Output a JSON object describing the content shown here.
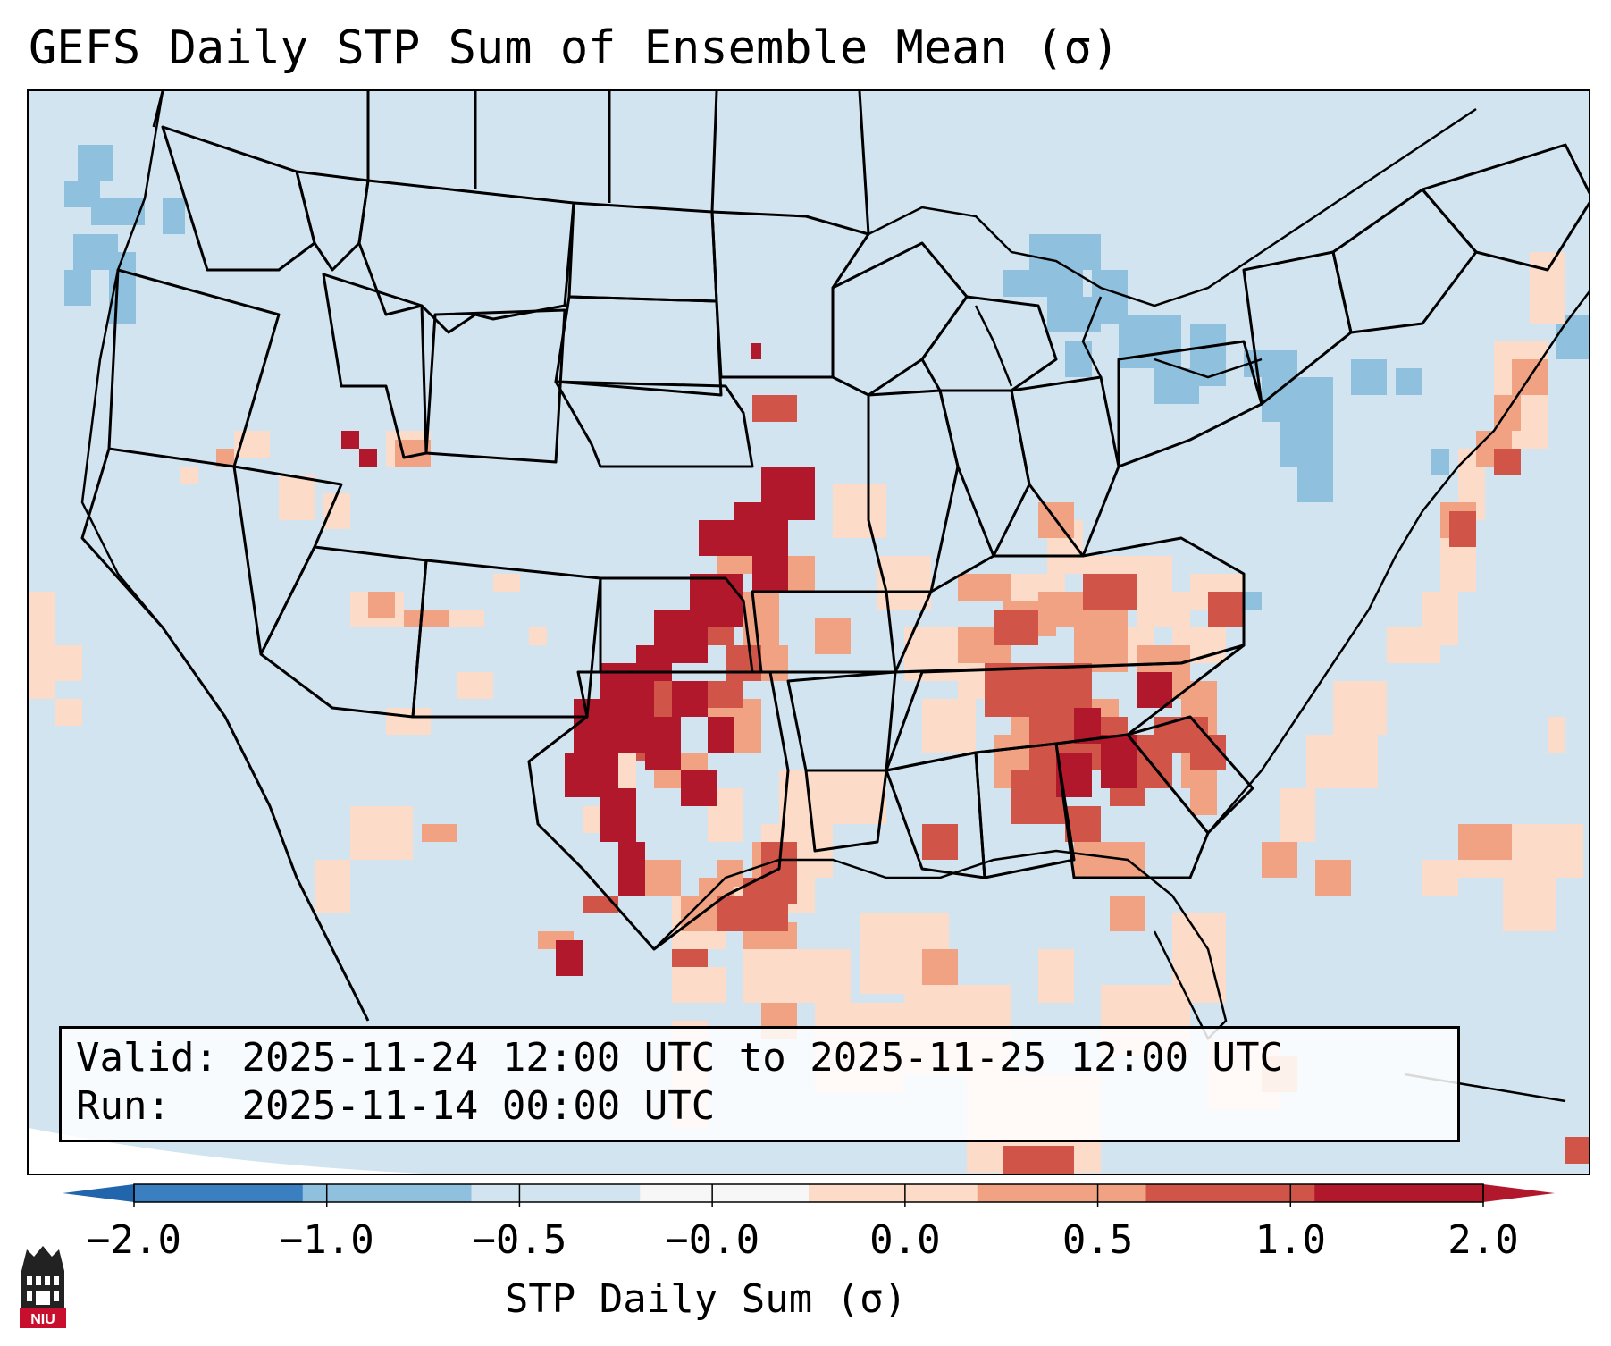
{
  "title": "GEFS Daily STP Sum of Ensemble Mean (σ)",
  "info": {
    "valid_label": "Valid:",
    "valid_value": "2025-11-24 12:00 UTC to 2025-11-25 12:00 UTC",
    "run_label": "Run:",
    "run_value": "2025-11-14 00:00 UTC"
  },
  "colorbar": {
    "label": "STP Daily Sum (σ)",
    "ticks": [
      "−2.0",
      "−1.0",
      "−0.5",
      "−0.0",
      "0.0",
      "0.5",
      "1.0",
      "2.0"
    ],
    "colors": [
      "#3a7fbf",
      "#8fc1de",
      "#d1e4ef",
      "#f7f7f7",
      "#fcdbc8",
      "#f0a283",
      "#d05548",
      "#b2182b"
    ],
    "under_color": "#2166ac",
    "over_color": "#b2182b"
  },
  "logo": {
    "text": "NIU"
  },
  "map": {
    "projection": "Lambert Conformal",
    "region": "Continental United States",
    "background_category": "-0.5 to -0.0",
    "features": [
      "state borders",
      "country borders",
      "coastlines"
    ]
  }
}
